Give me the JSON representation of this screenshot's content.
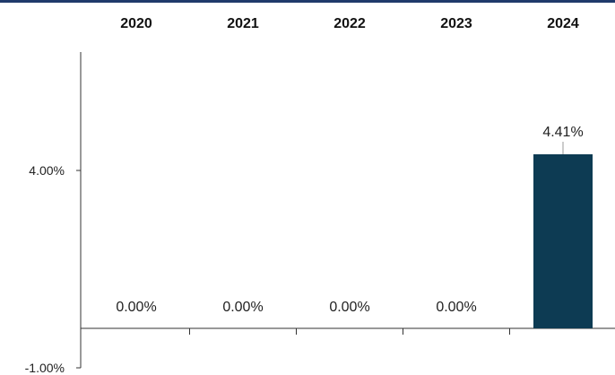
{
  "chart_data": {
    "type": "bar",
    "title": "",
    "xlabel": "",
    "ylabel": "",
    "categories": [
      "2020",
      "2021",
      "2022",
      "2023",
      "2024"
    ],
    "series": [
      {
        "values": [
          0.0,
          0.0,
          0.0,
          0.0,
          4.41
        ]
      }
    ],
    "data_labels": [
      "0.00%",
      "0.00%",
      "0.00%",
      "0.00%",
      "4.41%"
    ],
    "y_ticks": [
      {
        "value": 4.0,
        "label": "4.00%"
      },
      {
        "value": -1.0,
        "label": "-1.00%"
      }
    ],
    "ylim": [
      -1.0,
      7.0
    ],
    "category_label_position": "top",
    "grid": false,
    "legend": "none",
    "bar_color": "#0d3b53",
    "top_border_color": "#1f3a6b"
  }
}
